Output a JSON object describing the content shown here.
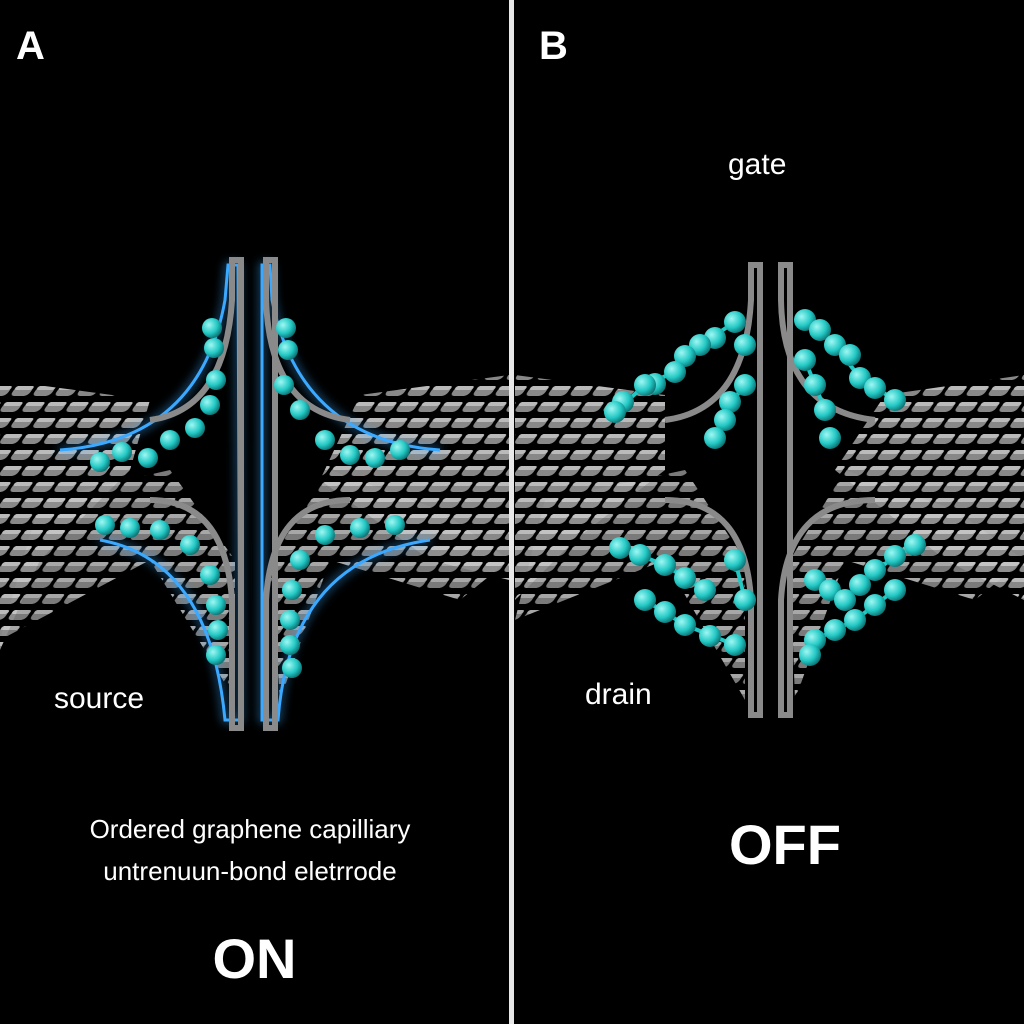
{
  "panels": [
    {
      "letter": "A",
      "labels": {
        "terminal": "source"
      },
      "caption_lines": [
        "Ordered graphene capilliary",
        "untrenuun-bond eletrrode"
      ],
      "state": "ON"
    },
    {
      "letter": "B",
      "labels": {
        "top": "gate",
        "terminal": "drain"
      },
      "state": "OFF"
    }
  ],
  "colors": {
    "background": "#000000",
    "divider": "#e8e8e8",
    "graphene": "#9a9a9a",
    "molecule": "#22c8c4",
    "glow": "#3aa9ff",
    "text": "#ffffff"
  }
}
